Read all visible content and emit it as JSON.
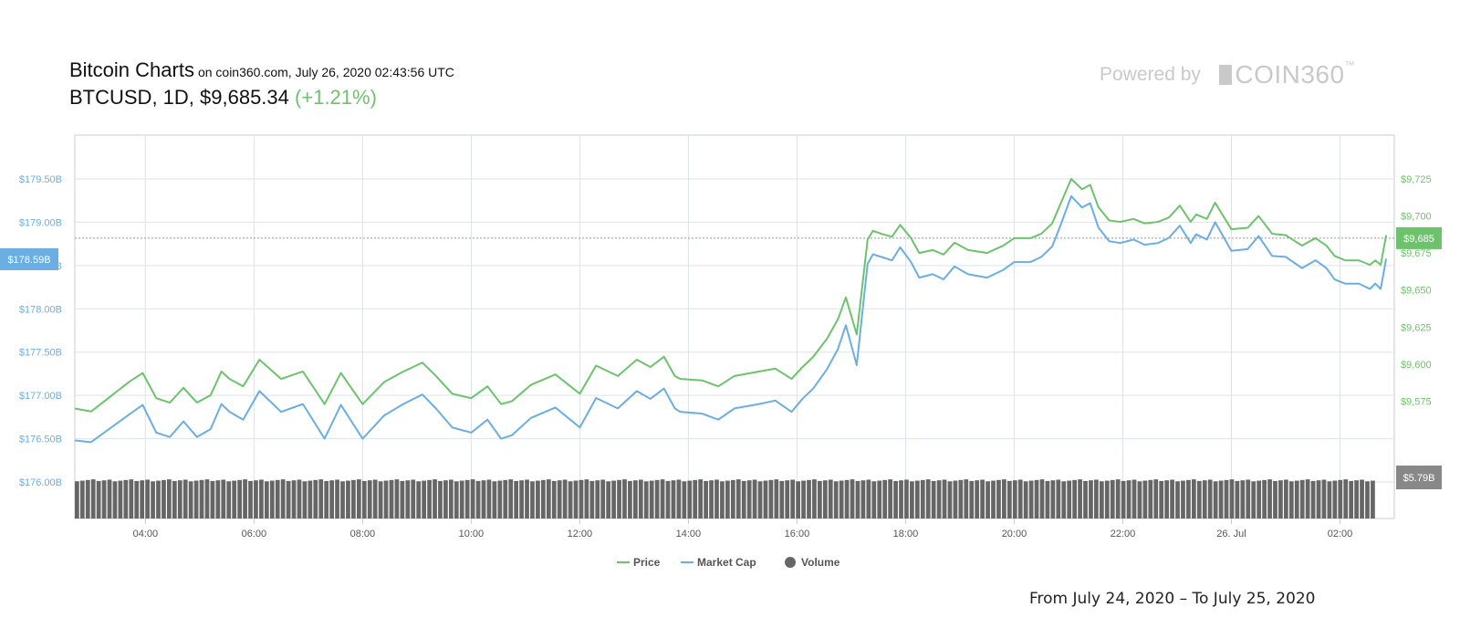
{
  "header": {
    "title": "Bitcoin Charts",
    "source_line": "on coin360.com, July 26, 2020 02:43:56 UTC",
    "pair_line": "BTCUSD, 1D, $9,685.34",
    "change": "(+1.21%)"
  },
  "powered_by": {
    "label": "Powered by",
    "brand": "COIN360",
    "trademark": "™"
  },
  "footer_text": "From July 24, 2020 – To July 25, 2020",
  "colors": {
    "price": "#6cc36c",
    "market_cap": "#6aaee3",
    "volume": "#666666",
    "grid": "#dde3ea",
    "left_axis_text": "#6aaee3",
    "right_axis_text": "#6cc36c",
    "last_marker": "#888888"
  },
  "chart_data": {
    "type": "line",
    "x_ticks": [
      "04:00",
      "06:00",
      "08:00",
      "10:00",
      "12:00",
      "14:00",
      "16:00",
      "18:00",
      "20:00",
      "22:00",
      "26. Jul",
      "02:00"
    ],
    "x_tick_hours": [
      4,
      6,
      8,
      10,
      12,
      14,
      16,
      18,
      20,
      22,
      24,
      26
    ],
    "x_range_hours": [
      2.7,
      27.0
    ],
    "left_axis": {
      "ticks": [
        "$179.50B",
        "$179.00B",
        "$178.50B",
        "$178.00B",
        "$177.50B",
        "$177.00B",
        "$176.50B",
        "$176.00B"
      ],
      "values": [
        179.5,
        179.0,
        178.5,
        178.0,
        177.5,
        177.0,
        176.5,
        176.0
      ],
      "range": [
        176.0,
        179.5
      ]
    },
    "right_axis": {
      "ticks": [
        "$9,725",
        "$9,700",
        "$9,675",
        "$9,650",
        "$9,625",
        "$9,600",
        "$9,575"
      ],
      "values": [
        9725,
        9700,
        9675,
        9650,
        9625,
        9600,
        9575
      ],
      "range": [
        9550,
        9725
      ]
    },
    "current_market_cap_label": "$178.59B",
    "current_price_label": "$9,685",
    "current_price": 9685,
    "current_volume_label": "$5.79B",
    "legend": [
      {
        "name": "Price",
        "kind": "line"
      },
      {
        "name": "Market Cap",
        "kind": "line"
      },
      {
        "name": "Volume",
        "kind": "dot"
      }
    ],
    "series": [
      {
        "name": "Price",
        "x_hours": [
          2.7,
          3.0,
          3.35,
          3.7,
          3.95,
          4.2,
          4.45,
          4.7,
          4.95,
          5.2,
          5.4,
          5.55,
          5.8,
          6.1,
          6.5,
          6.9,
          7.3,
          7.6,
          8.0,
          8.4,
          8.75,
          9.1,
          9.35,
          9.65,
          10.0,
          10.3,
          10.55,
          10.75,
          11.1,
          11.55,
          12.0,
          12.3,
          12.7,
          13.05,
          13.3,
          13.55,
          13.75,
          13.85,
          14.25,
          14.55,
          14.85,
          15.3,
          15.6,
          15.9,
          16.1,
          16.3,
          16.55,
          16.75,
          16.9,
          17.1,
          17.3,
          17.4,
          17.55,
          17.75,
          17.9,
          18.1,
          18.25,
          18.5,
          18.7,
          18.9,
          19.15,
          19.5,
          19.8,
          20.0,
          20.3,
          20.5,
          20.7,
          20.85,
          21.05,
          21.25,
          21.4,
          21.55,
          21.75,
          21.95,
          22.2,
          22.4,
          22.65,
          22.85,
          23.05,
          23.25,
          23.35,
          23.55,
          23.7,
          24.0,
          24.3,
          24.5,
          24.75,
          25.0,
          25.3,
          25.55,
          25.75,
          25.9,
          26.1,
          26.35,
          26.55,
          26.65,
          26.75,
          26.85
        ],
        "values": [
          9570,
          9568,
          9578,
          9588,
          9594,
          9577,
          9574,
          9584,
          9574,
          9579,
          9595,
          9590,
          9585,
          9603,
          9590,
          9595,
          9573,
          9594,
          9573,
          9588,
          9595,
          9601,
          9592,
          9580,
          9577,
          9585,
          9573,
          9575,
          9586,
          9593,
          9580,
          9599,
          9592,
          9603,
          9598,
          9605,
          9592,
          9590,
          9589,
          9585,
          9592,
          9595,
          9597,
          9590,
          9598,
          9605,
          9617,
          9630,
          9645,
          9620,
          9684,
          9690,
          9688,
          9686,
          9694,
          9685,
          9675,
          9677,
          9674,
          9682,
          9677,
          9675,
          9680,
          9685,
          9685,
          9688,
          9695,
          9708,
          9725,
          9718,
          9721,
          9706,
          9697,
          9696,
          9698,
          9695,
          9696,
          9699,
          9707,
          9696,
          9701,
          9698,
          9709,
          9691,
          9692,
          9700,
          9688,
          9687,
          9680,
          9685,
          9680,
          9673,
          9670,
          9670,
          9667,
          9670,
          9667,
          9687
        ]
      },
      {
        "name": "Market Cap",
        "x_hours": [
          2.7,
          3.0,
          3.35,
          3.7,
          3.95,
          4.2,
          4.45,
          4.7,
          4.95,
          5.2,
          5.4,
          5.55,
          5.8,
          6.1,
          6.5,
          6.9,
          7.3,
          7.6,
          8.0,
          8.4,
          8.75,
          9.1,
          9.35,
          9.65,
          10.0,
          10.3,
          10.55,
          10.75,
          11.1,
          11.55,
          12.0,
          12.3,
          12.7,
          13.05,
          13.3,
          13.55,
          13.75,
          13.85,
          14.25,
          14.55,
          14.85,
          15.3,
          15.6,
          15.9,
          16.1,
          16.3,
          16.55,
          16.75,
          16.9,
          17.1,
          17.3,
          17.4,
          17.55,
          17.75,
          17.9,
          18.1,
          18.25,
          18.5,
          18.7,
          18.9,
          19.15,
          19.5,
          19.8,
          20.0,
          20.3,
          20.5,
          20.7,
          20.85,
          21.05,
          21.25,
          21.4,
          21.55,
          21.75,
          21.95,
          22.2,
          22.4,
          22.65,
          22.85,
          23.05,
          23.25,
          23.35,
          23.55,
          23.7,
          24.0,
          24.3,
          24.5,
          24.75,
          25.0,
          25.3,
          25.55,
          25.75,
          25.9,
          26.1,
          26.35,
          26.55,
          26.65,
          26.75,
          26.85
        ],
        "values": [
          176.48,
          176.46,
          176.62,
          176.78,
          176.89,
          176.57,
          176.52,
          176.7,
          176.52,
          176.61,
          176.9,
          176.81,
          176.72,
          177.05,
          176.81,
          176.9,
          176.5,
          176.89,
          176.5,
          176.77,
          176.9,
          177.01,
          176.85,
          176.63,
          176.57,
          176.72,
          176.5,
          176.54,
          176.74,
          176.86,
          176.63,
          176.97,
          176.85,
          177.05,
          176.96,
          177.08,
          176.85,
          176.81,
          176.79,
          176.72,
          176.85,
          176.9,
          176.94,
          176.81,
          176.96,
          177.08,
          177.3,
          177.53,
          177.81,
          177.35,
          178.52,
          178.63,
          178.6,
          178.56,
          178.71,
          178.54,
          178.36,
          178.4,
          178.34,
          178.49,
          178.4,
          178.36,
          178.45,
          178.54,
          178.54,
          178.6,
          178.72,
          178.96,
          179.3,
          179.17,
          179.22,
          178.94,
          178.78,
          178.76,
          178.8,
          178.74,
          178.76,
          178.82,
          178.96,
          178.76,
          178.86,
          178.8,
          179.0,
          178.67,
          178.69,
          178.84,
          178.61,
          178.6,
          178.47,
          178.56,
          178.47,
          178.34,
          178.29,
          178.29,
          178.23,
          178.29,
          178.23,
          178.58
        ]
      }
    ],
    "volume_bar_count": 240,
    "volume_level": 0.97
  }
}
